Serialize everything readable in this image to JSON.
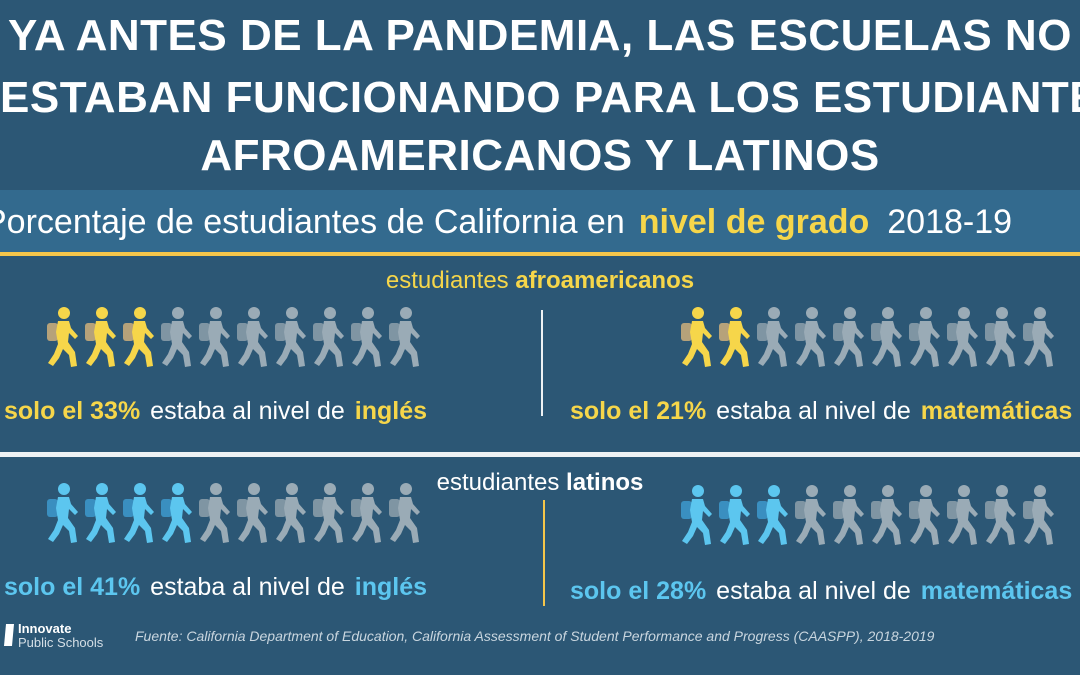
{
  "title": {
    "line1": "YA ANTES DE LA PANDEMIA,  LAS ESCUELAS NO",
    "line2": "ESTABAN FUNCIONANDO PARA LOS ESTUDIANTES",
    "line3": "AFROAMERICANOS Y LATINOS"
  },
  "subtitle": {
    "prefix": "Porcentaje de estudiantes de California en",
    "highlight": "nivel de grado",
    "year": "2018-19"
  },
  "groups": [
    {
      "label_prefix": "estudiantes",
      "label_bold": "afroamericanos",
      "panels": [
        {
          "pct_text": "solo el 33%",
          "mid": "estaba al nivel de",
          "subject": "inglés",
          "filled": 3,
          "total": 10
        },
        {
          "pct_text": "solo el 21%",
          "mid": "estaba al nivel de",
          "subject": "matemáticas",
          "filled": 2,
          "total": 10
        }
      ]
    },
    {
      "label_prefix": "estudiantes",
      "label_bold": "latinos",
      "panels": [
        {
          "pct_text": "solo el 41%",
          "mid": "estaba al nivel de",
          "subject": "inglés",
          "filled": 4,
          "total": 10
        },
        {
          "pct_text": "solo el 28%",
          "mid": "estaba al nivel de",
          "subject": "matemáticas",
          "filled": 3,
          "total": 10
        }
      ]
    }
  ],
  "colors": {
    "background": "#2c5775",
    "band": "#336a8e",
    "yellow": "#f6d64a",
    "blue": "#5cc6ef",
    "gray_figure": "#9aabb6"
  },
  "icons": {
    "figure": "walking-student-icon"
  },
  "logo": {
    "line1": "Innovate",
    "line2": "Public Schools"
  },
  "source": "Fuente: California Department of Education, California Assessment of Student Performance and Progress (CAASPP), 2018-2019"
}
